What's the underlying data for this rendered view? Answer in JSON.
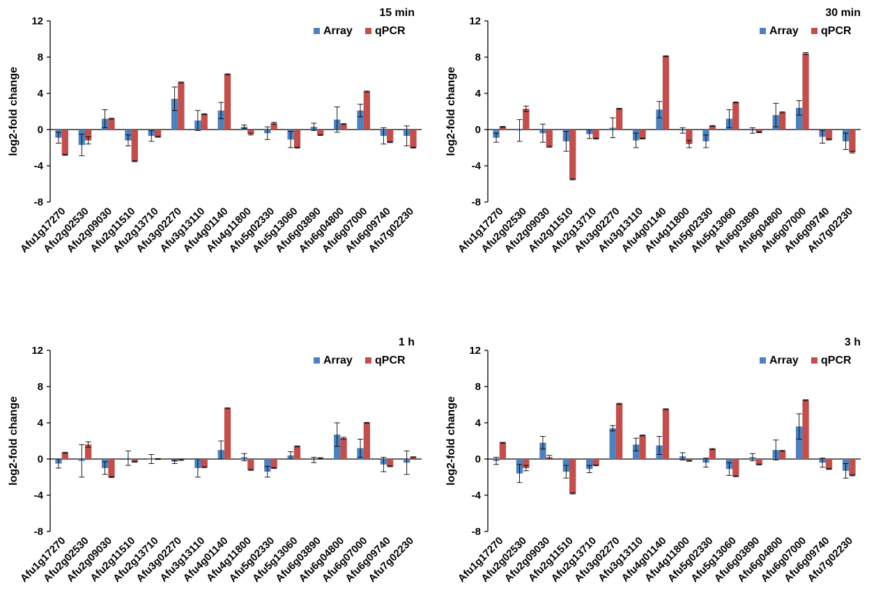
{
  "colors": {
    "array": "#4F81BD",
    "qpcr": "#C0504D",
    "axis": "#000000",
    "errorbar": "#000000"
  },
  "chart_data": [
    {
      "type": "bar",
      "title": "15 min",
      "ylabel": "log2-fold change",
      "ylim": [
        -8,
        12
      ],
      "yticks": [
        -8,
        -4,
        0,
        4,
        8,
        12
      ],
      "ytick_labels": [
        "-8",
        "-4",
        "0",
        "4",
        "8",
        "12"
      ],
      "legend_position": "top-right",
      "categories": [
        "Afu1g17270",
        "Afu2g02530",
        "Afu2g09030",
        "Afu2g11510",
        "Afu2g13710",
        "Afu3g02270",
        "Afu3g13110",
        "Afu4g01140",
        "Afu4g11800",
        "Afu5g02330",
        "Afu5g13060",
        "Afu6g03890",
        "Afu6g04800",
        "Afu6g07000",
        "Afu6g09740",
        "Afu7g02230"
      ],
      "series": [
        {
          "name": "Array",
          "values": [
            -0.9,
            -1.7,
            1.2,
            -1.2,
            -0.7,
            3.4,
            1.0,
            2.1,
            0.3,
            -0.4,
            -1.1,
            0.3,
            1.1,
            2.1,
            -0.7,
            -0.7
          ],
          "errors": [
            0.6,
            1.2,
            1.0,
            0.6,
            0.6,
            1.3,
            1.1,
            0.9,
            0.2,
            0.7,
            0.9,
            0.4,
            1.4,
            0.7,
            0.9,
            1.1
          ]
        },
        {
          "name": "qPCR",
          "values": [
            -2.8,
            -1.2,
            1.2,
            -3.5,
            -0.8,
            5.2,
            1.7,
            6.1,
            -0.5,
            0.7,
            -2.0,
            -0.6,
            0.6,
            4.2,
            -1.4,
            -2.0
          ],
          "errors": [
            0.05,
            0.4,
            0.05,
            0.05,
            0.05,
            0.05,
            0.05,
            0.05,
            0.1,
            0.1,
            0.05,
            0.05,
            0.05,
            0.05,
            0.05,
            0.05
          ]
        }
      ]
    },
    {
      "type": "bar",
      "title": "30 min",
      "ylabel": "log2-fold change",
      "ylim": [
        -8,
        12
      ],
      "yticks": [
        -8,
        -4,
        0,
        4,
        8,
        12
      ],
      "ytick_labels": [
        "-8",
        "-4",
        "0",
        "4",
        "8",
        "12"
      ],
      "legend_position": "top-right",
      "categories": [
        "Afu1g17270",
        "Afu2g02530",
        "Afu2g09030",
        "Afu2g11510",
        "Afu2g13710",
        "Afu3g02270",
        "Afu3g13110",
        "Afu4g01140",
        "Afu4g11800",
        "Afu5g02330",
        "Afu5g13060",
        "Afu6g03890",
        "Afu6g04800",
        "Afu6g07000",
        "Afu6g09740",
        "Afu7g02230"
      ],
      "series": [
        {
          "name": "Array",
          "values": [
            -0.9,
            -0.1,
            -0.4,
            -1.3,
            -0.5,
            0.2,
            -1.2,
            2.2,
            -0.1,
            -1.3,
            1.2,
            -0.1,
            1.6,
            2.4,
            -0.8,
            -1.3
          ],
          "errors": [
            0.5,
            1.2,
            1.0,
            1.1,
            0.5,
            1.1,
            0.8,
            0.9,
            0.3,
            0.7,
            1.0,
            0.3,
            1.3,
            0.8,
            0.7,
            0.9
          ]
        },
        {
          "name": "qPCR",
          "values": [
            0.3,
            2.3,
            -1.9,
            -5.5,
            -1.0,
            2.3,
            -1.0,
            8.1,
            -1.6,
            0.4,
            3.0,
            -0.3,
            1.9,
            8.4,
            -1.1,
            -2.5
          ],
          "errors": [
            0.05,
            0.3,
            0.05,
            0.05,
            0.05,
            0.05,
            0.05,
            0.05,
            0.4,
            0.05,
            0.05,
            0.05,
            0.05,
            0.1,
            0.05,
            0.1
          ]
        }
      ]
    },
    {
      "type": "bar",
      "title": "1 h",
      "ylabel": "log2-fold change",
      "ylim": [
        -8,
        12
      ],
      "yticks": [
        -8,
        -4,
        0,
        4,
        8,
        12
      ],
      "ytick_labels": [
        "-8",
        "-4",
        "0",
        "4",
        "8",
        "12"
      ],
      "legend_position": "top-right",
      "categories": [
        "Afu1g17270",
        "Afu2g02530",
        "Afu2g09030",
        "Afu2g11510",
        "Afu2g13710",
        "Afu3g02270",
        "Afu3g13110",
        "Afu4g01140",
        "Afu4g11800",
        "Afu5g02330",
        "Afu5g13060",
        "Afu6g03890",
        "Afu6g04800",
        "Afu6g07000",
        "Afu6g09740",
        "Afu7g02230"
      ],
      "series": [
        {
          "name": "Array",
          "values": [
            -0.5,
            -0.2,
            -1.0,
            0.1,
            0.0,
            -0.3,
            -1.0,
            1.0,
            0.2,
            -1.4,
            0.4,
            -0.1,
            2.7,
            1.2,
            -0.6,
            -0.4
          ],
          "errors": [
            0.5,
            1.8,
            0.7,
            0.8,
            0.5,
            0.2,
            1.0,
            1.0,
            0.4,
            0.6,
            0.4,
            0.3,
            1.3,
            1.0,
            0.8,
            1.3
          ]
        },
        {
          "name": "qPCR",
          "values": [
            0.7,
            1.6,
            -2.0,
            -0.3,
            0.0,
            -0.1,
            -0.9,
            5.6,
            -1.2,
            -1.0,
            1.4,
            0.1,
            2.3,
            4.0,
            -0.8,
            0.2
          ],
          "errors": [
            0.05,
            0.3,
            0.05,
            0.05,
            0.05,
            0.05,
            0.05,
            0.05,
            0.05,
            0.05,
            0.05,
            0.05,
            0.1,
            0.05,
            0.05,
            0.05
          ]
        }
      ]
    },
    {
      "type": "bar",
      "title": "3 h",
      "ylabel": "log2-fold change",
      "ylim": [
        -8,
        12
      ],
      "yticks": [
        -8,
        -4,
        0,
        4,
        8,
        12
      ],
      "ytick_labels": [
        "-8",
        "-4",
        "0",
        "4",
        "8",
        "12"
      ],
      "legend_position": "top-right",
      "categories": [
        "Afu1g17270",
        "Afu2g02530",
        "Afu2g09030",
        "Afu2g11510",
        "Afu2g13710",
        "Afu3g02270",
        "Afu3g13110",
        "Afu4g01140",
        "Afu4g11800",
        "Afu5g02330",
        "Afu5g13060",
        "Afu6g03890",
        "Afu6g04800",
        "Afu6g07000",
        "Afu6g09740",
        "Afu7g02230"
      ],
      "series": [
        {
          "name": "Array",
          "values": [
            -0.2,
            -1.6,
            1.8,
            -1.4,
            -1.1,
            3.4,
            1.6,
            1.5,
            0.3,
            -0.4,
            -1.1,
            0.2,
            1.0,
            3.6,
            -0.4,
            -1.3
          ],
          "errors": [
            0.4,
            1.0,
            0.7,
            0.7,
            0.4,
            0.3,
            0.7,
            1.0,
            0.4,
            0.5,
            0.7,
            0.4,
            1.1,
            1.4,
            0.5,
            0.8
          ]
        },
        {
          "name": "qPCR",
          "values": [
            1.8,
            -1.0,
            0.2,
            -3.8,
            -0.7,
            6.1,
            2.6,
            5.5,
            -0.2,
            1.1,
            -1.9,
            -0.6,
            0.9,
            6.5,
            -1.1,
            -1.8
          ],
          "errors": [
            0.05,
            0.3,
            0.2,
            0.05,
            0.05,
            0.05,
            0.05,
            0.05,
            0.05,
            0.05,
            0.05,
            0.05,
            0.05,
            0.05,
            0.05,
            0.05
          ]
        }
      ]
    }
  ]
}
